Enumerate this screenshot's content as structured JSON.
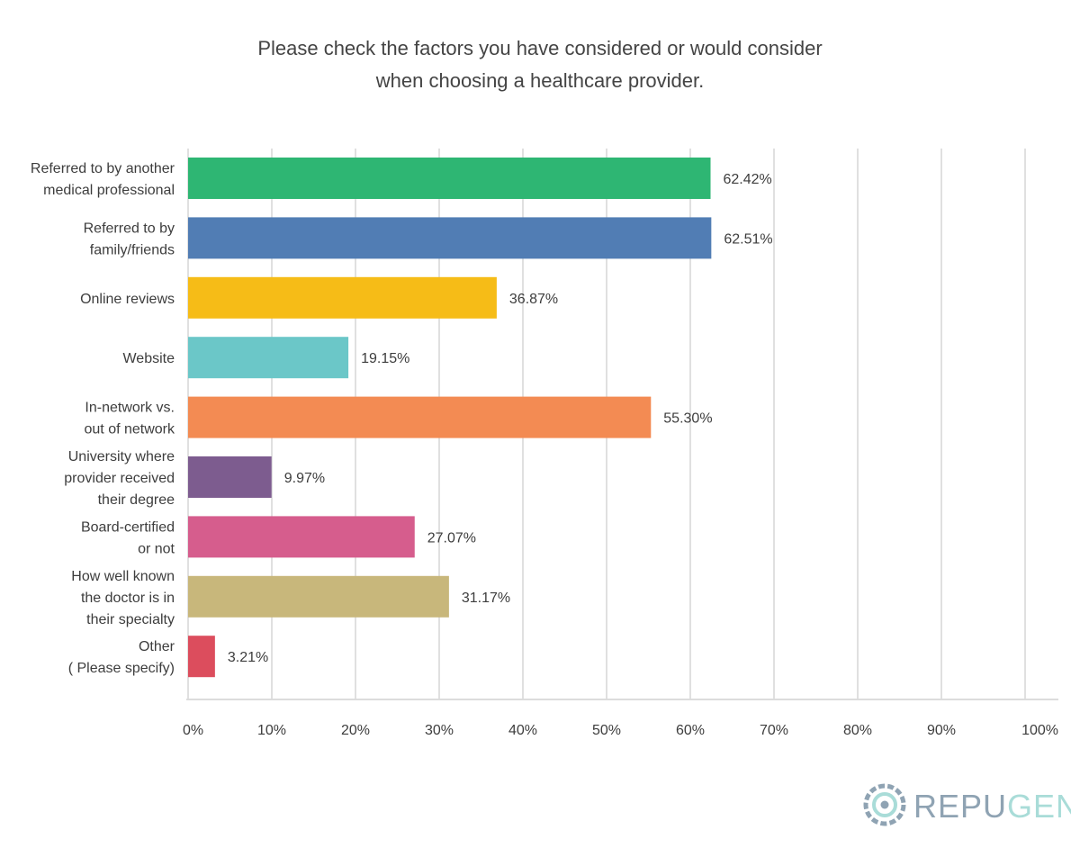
{
  "title_lines": [
    "Please check the factors you have considered or would consider",
    "when choosing a healthcare provider."
  ],
  "chart_data": {
    "type": "bar",
    "orientation": "horizontal",
    "title": "Please check the factors you have considered or would consider when choosing a healthcare provider.",
    "categories": [
      [
        "Referred to by another",
        "medical professional"
      ],
      [
        "Referred to by",
        "family/friends"
      ],
      [
        "Online reviews"
      ],
      [
        "Website"
      ],
      [
        "In-network vs.",
        "out of network"
      ],
      [
        "University where",
        "provider received",
        "their degree"
      ],
      [
        "Board-certified",
        "or not"
      ],
      [
        "How well known",
        "the doctor is in",
        "their specialty"
      ],
      [
        "Other",
        "( Please specify)"
      ]
    ],
    "values": [
      62.42,
      62.51,
      36.87,
      19.15,
      55.3,
      9.97,
      27.07,
      31.17,
      3.21
    ],
    "value_labels": [
      "62.42%",
      "62.51%",
      "36.87%",
      "19.15%",
      "55.30%",
      "9.97%",
      "27.07%",
      "31.17%",
      "3.21%"
    ],
    "colors": [
      "#2eb673",
      "#517db4",
      "#f6bc17",
      "#6bc7c8",
      "#f38b53",
      "#7d5c8f",
      "#d65d8d",
      "#c8b77b",
      "#dc4d5d"
    ],
    "xlim": [
      0,
      100
    ],
    "xticks": [
      0,
      10,
      20,
      30,
      40,
      50,
      60,
      70,
      80,
      90,
      100
    ],
    "xtick_labels": [
      "0%",
      "10%",
      "20%",
      "30%",
      "40%",
      "50%",
      "60%",
      "70%",
      "80%",
      "90%",
      "100%"
    ],
    "grid": true,
    "xlabel": "",
    "ylabel": ""
  },
  "logo": {
    "text_a": "REPU",
    "text_b": "GEN",
    "color_a": "#8fa3b3",
    "color_b": "#a9dcd8"
  }
}
